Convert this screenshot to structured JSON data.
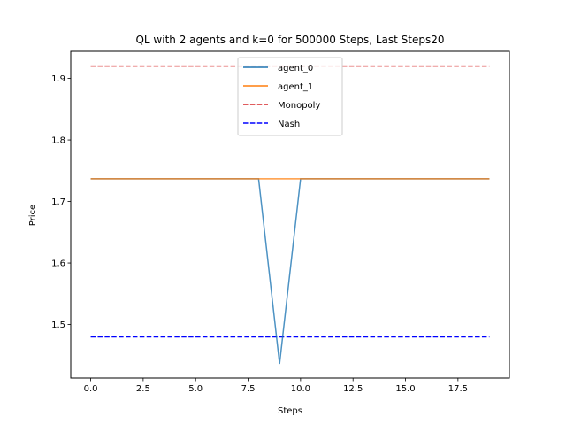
{
  "chart_data": {
    "type": "line",
    "title": "QL with 2 agents and k=0 for 500000 Steps, Last Steps20",
    "xlabel": "Steps",
    "ylabel": "Price",
    "xlim": [
      -0.95,
      19.95
    ],
    "ylim": [
      1.413,
      1.944
    ],
    "xticks": [
      0,
      2.5,
      5,
      7.5,
      10,
      12.5,
      15,
      17.5
    ],
    "xtick_labels": [
      "0.0",
      "2.5",
      "5.0",
      "7.5",
      "10.0",
      "12.5",
      "15.0",
      "17.5"
    ],
    "yticks": [
      1.5,
      1.6,
      1.7,
      1.8,
      1.9
    ],
    "ytick_labels": [
      "1.5",
      "1.6",
      "1.7",
      "1.8",
      "1.9"
    ],
    "grid": false,
    "legend_position": "top-center",
    "x": [
      0,
      1,
      2,
      3,
      4,
      5,
      6,
      7,
      8,
      9,
      10,
      11,
      12,
      13,
      14,
      15,
      16,
      17,
      18,
      19
    ],
    "series": [
      {
        "name": "agent_0",
        "color": "#1f77b4",
        "style": "solid",
        "values": [
          1.737,
          1.737,
          1.737,
          1.737,
          1.737,
          1.737,
          1.737,
          1.737,
          1.737,
          1.436,
          1.737,
          1.737,
          1.737,
          1.737,
          1.737,
          1.737,
          1.737,
          1.737,
          1.737,
          1.737
        ]
      },
      {
        "name": "agent_1",
        "color": "#ff7f0e",
        "style": "solid",
        "values": [
          1.737,
          1.737,
          1.737,
          1.737,
          1.737,
          1.737,
          1.737,
          1.737,
          1.737,
          1.737,
          1.737,
          1.737,
          1.737,
          1.737,
          1.737,
          1.737,
          1.737,
          1.737,
          1.737,
          1.737
        ]
      },
      {
        "name": "Monopoly",
        "color": "#d62728",
        "style": "dashed",
        "values": [
          1.92,
          1.92,
          1.92,
          1.92,
          1.92,
          1.92,
          1.92,
          1.92,
          1.92,
          1.92,
          1.92,
          1.92,
          1.92,
          1.92,
          1.92,
          1.92,
          1.92,
          1.92,
          1.92,
          1.92
        ]
      },
      {
        "name": "Nash",
        "color": "#0000ff",
        "style": "dashed",
        "values": [
          1.48,
          1.48,
          1.48,
          1.48,
          1.48,
          1.48,
          1.48,
          1.48,
          1.48,
          1.48,
          1.48,
          1.48,
          1.48,
          1.48,
          1.48,
          1.48,
          1.48,
          1.48,
          1.48,
          1.48
        ]
      }
    ]
  }
}
